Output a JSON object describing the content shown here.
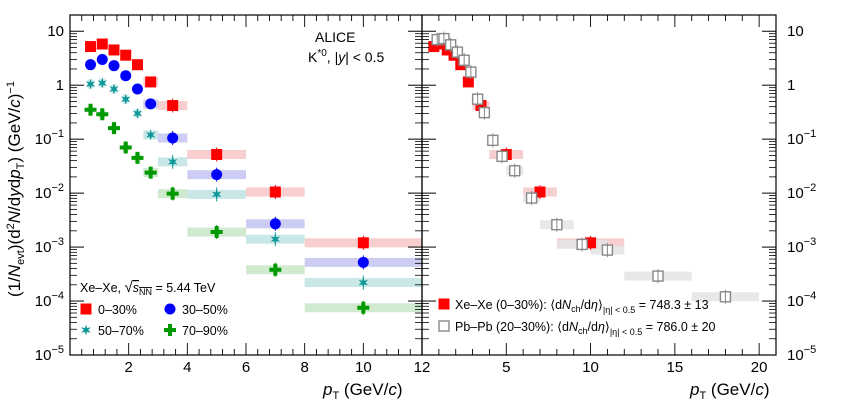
{
  "chart_data": {
    "type": "scatter",
    "y_axis": {
      "label": "(1/N_evt)(d²N/dydp_T) (GeV/c)^-1",
      "scale": "log",
      "ylim": [
        1e-05,
        20
      ],
      "ticks": [
        {
          "value": 1e-05,
          "label": "10^-5"
        },
        {
          "value": 0.0001,
          "label": "10^-4"
        },
        {
          "value": 0.001,
          "label": "10^-3"
        },
        {
          "value": 0.01,
          "label": "10^-2"
        },
        {
          "value": 0.1,
          "label": "10^-1"
        },
        {
          "value": 1,
          "label": "1"
        },
        {
          "value": 10,
          "label": "10"
        }
      ]
    },
    "annotation": {
      "line1": "ALICE",
      "line2": "K*0, |y| < 0.5"
    },
    "panels": [
      {
        "name": "left",
        "xlabel": "p_T (GeV/c)",
        "xlim": [
          0,
          12
        ],
        "xticks": [
          2,
          4,
          6,
          8,
          10,
          12
        ],
        "legend_title": "Xe–Xe, √sNN = 5.44 TeV",
        "series": [
          {
            "name": "0–30%",
            "marker": "square",
            "color": "#ff0000",
            "band": "#f7c6c6",
            "x": [
              0.7,
              1.1,
              1.5,
              1.9,
              2.3,
              2.75,
              3.5,
              5.0,
              7.0,
              10.0
            ],
            "xlo": [
              0.6,
              1.0,
              1.4,
              1.8,
              2.2,
              2.5,
              3.0,
              4.0,
              6.0,
              8.0
            ],
            "xhi": [
              0.8,
              1.2,
              1.6,
              2.0,
              2.4,
              3.0,
              4.0,
              6.0,
              8.0,
              12.0
            ],
            "y": [
              5.2,
              5.8,
              4.5,
              3.6,
              2.4,
              1.15,
              0.42,
              0.052,
              0.0105,
              0.0012
            ]
          },
          {
            "name": "30–50%",
            "marker": "circle",
            "color": "#0000ff",
            "band": "#c4c4f2",
            "x": [
              0.7,
              1.1,
              1.5,
              1.9,
              2.3,
              2.75,
              3.5,
              5.0,
              7.0,
              10.0
            ],
            "xlo": [
              0.6,
              1.0,
              1.4,
              1.8,
              2.2,
              2.5,
              3.0,
              4.0,
              6.0,
              8.0
            ],
            "xhi": [
              0.8,
              1.2,
              1.6,
              2.0,
              2.4,
              3.0,
              4.0,
              6.0,
              8.0,
              12.0
            ],
            "y": [
              2.4,
              3.0,
              2.3,
              1.5,
              0.85,
              0.45,
              0.105,
              0.022,
              0.0027,
              0.00052
            ]
          },
          {
            "name": "50–70%",
            "marker": "star",
            "color": "#119999",
            "band": "#bfe3e3",
            "x": [
              0.7,
              1.1,
              1.5,
              1.9,
              2.3,
              2.75,
              3.5,
              5.0,
              7.0,
              10.0
            ],
            "xlo": [
              0.6,
              1.0,
              1.4,
              1.8,
              2.2,
              2.5,
              3.0,
              4.0,
              6.0,
              8.0
            ],
            "xhi": [
              0.8,
              1.2,
              1.6,
              2.0,
              2.4,
              3.0,
              4.0,
              6.0,
              8.0,
              12.0
            ],
            "y": [
              1.05,
              1.1,
              0.85,
              0.55,
              0.3,
              0.12,
              0.038,
              0.0095,
              0.0014,
              0.00022
            ]
          },
          {
            "name": "70–90%",
            "marker": "cross",
            "color": "#009900",
            "band": "#c8e6c8",
            "x": [
              0.7,
              1.1,
              1.5,
              1.9,
              2.3,
              2.75,
              3.5,
              5.0,
              7.0,
              10.0
            ],
            "xlo": [
              0.6,
              1.0,
              1.4,
              1.8,
              2.2,
              2.5,
              3.0,
              4.0,
              6.0,
              8.0
            ],
            "xhi": [
              0.8,
              1.2,
              1.6,
              2.0,
              2.4,
              3.0,
              4.0,
              6.0,
              8.0,
              12.0
            ],
            "y": [
              0.35,
              0.29,
              0.16,
              0.07,
              0.045,
              0.024,
              0.0098,
              0.0019,
              0.00038,
              7.5e-05
            ]
          }
        ]
      },
      {
        "name": "right",
        "xlabel": "p_T (GeV/c)",
        "xlim": [
          0,
          21
        ],
        "xticks": [
          5,
          10,
          15,
          20
        ],
        "series": [
          {
            "name": "Xe–Xe (0–30%)",
            "legend": "Xe–Xe (0–30%): ⟨dNch/dη⟩ |η|<0.5 = 748.3 ± 13",
            "marker": "square",
            "color": "#ff0000",
            "band": "#f7c6c6",
            "x": [
              0.7,
              1.1,
              1.5,
              1.9,
              2.3,
              2.75,
              3.5,
              5.0,
              7.0,
              10.0
            ],
            "xlo": [
              0.6,
              1.0,
              1.4,
              1.8,
              2.2,
              2.5,
              3.0,
              4.0,
              6.0,
              8.0
            ],
            "xhi": [
              0.8,
              1.2,
              1.6,
              2.0,
              2.4,
              3.0,
              4.0,
              6.0,
              8.0,
              12.0
            ],
            "y": [
              5.2,
              5.8,
              4.5,
              3.6,
              2.4,
              1.15,
              0.42,
              0.052,
              0.0105,
              0.0012
            ]
          },
          {
            "name": "Pb–Pb (20–30%)",
            "legend": "Pb–Pb (20–30%): ⟨dNch/dη⟩ |η|<0.5 = 786.0 ± 20",
            "marker": "open-square",
            "color": "#888888",
            "band": "#e4e4e4",
            "x": [
              0.9,
              1.3,
              1.7,
              2.1,
              2.5,
              2.9,
              3.3,
              3.7,
              4.2,
              4.75,
              5.5,
              6.5,
              8.0,
              9.5,
              11.0,
              14.0,
              18.0
            ],
            "xlo": [
              0.8,
              1.2,
              1.6,
              2.0,
              2.4,
              2.8,
              3.2,
              3.6,
              4.0,
              4.5,
              5.0,
              6.0,
              7.0,
              8.0,
              10.0,
              12.0,
              16.0
            ],
            "xhi": [
              1.0,
              1.4,
              1.8,
              2.2,
              2.6,
              3.0,
              3.4,
              3.8,
              4.5,
              5.0,
              6.0,
              7.0,
              9.0,
              11.0,
              12.0,
              16.0,
              20.0
            ],
            "y": [
              7.0,
              7.3,
              5.6,
              4.1,
              2.9,
              1.75,
              0.55,
              0.31,
              0.095,
              0.048,
              0.026,
              0.0081,
              0.0026,
              0.00112,
              0.00088,
              0.00029,
              0.00012
            ]
          }
        ]
      }
    ]
  }
}
